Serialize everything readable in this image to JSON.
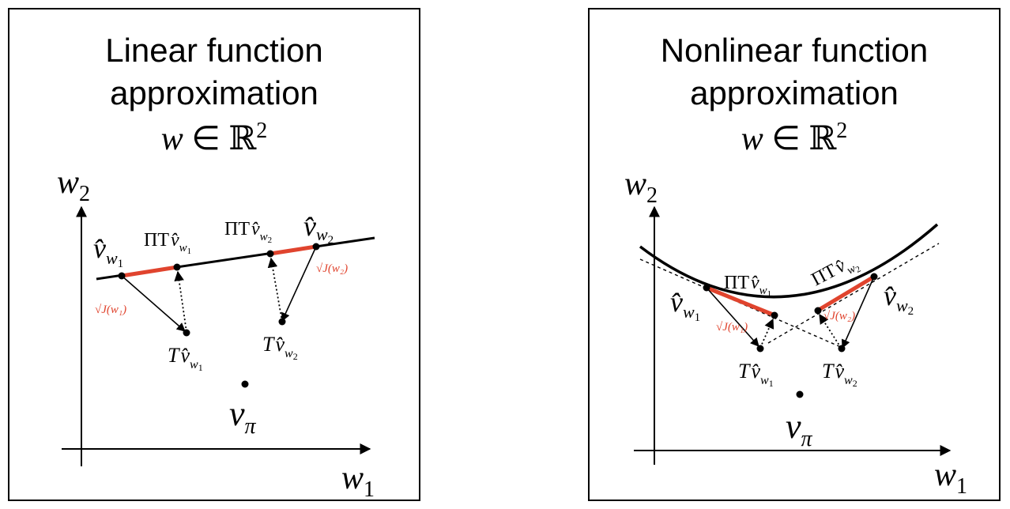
{
  "panels": [
    {
      "title_line1": "Linear function",
      "title_line2": "approximation",
      "param_var": "w",
      "param_op": "∈",
      "param_set": "ℝ",
      "param_dim": "2",
      "axis_y": "w",
      "axis_y_sub": "2",
      "axis_x": "w",
      "axis_x_sub": "1",
      "labels": {
        "v_hat": "v̂",
        "w": "w",
        "sub1": "1",
        "sub2": "2",
        "pi_t": "ΠT",
        "t": "T",
        "v_pi": "v",
        "pi_sub": "π",
        "err1": "√J(w₁)",
        "err2": "√J(w₂)"
      }
    },
    {
      "title_line1": "Nonlinear function",
      "title_line2": "approximation",
      "param_var": "w",
      "param_op": "∈",
      "param_set": "ℝ",
      "param_dim": "2",
      "axis_y": "w",
      "axis_y_sub": "2",
      "axis_x": "w",
      "axis_x_sub": "1",
      "labels": {
        "v_hat": "v̂",
        "w": "w",
        "sub1": "1",
        "sub2": "2",
        "pi_t": "ΠT",
        "t": "T",
        "v_pi": "v",
        "pi_sub": "π",
        "err1": "√J(w₁)",
        "err2": "√J(w₂)"
      }
    }
  ],
  "colors": {
    "error": "#e0442e",
    "ink": "#000000"
  }
}
